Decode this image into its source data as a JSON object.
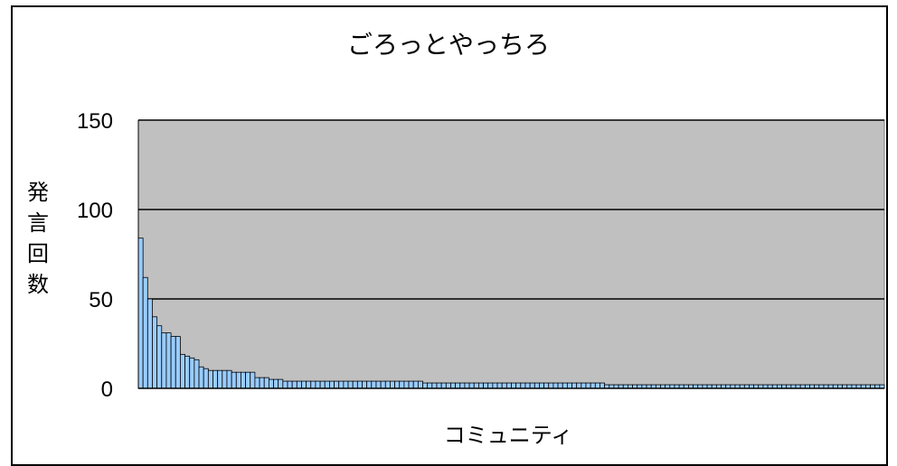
{
  "chart_data": {
    "type": "bar",
    "title": "ごろっとやっちろ",
    "xlabel": "コミュニティ",
    "ylabel": "発言回数",
    "ylim": [
      0,
      150
    ],
    "yticks": [
      0,
      50,
      100,
      150
    ],
    "grid": true,
    "legend": "none",
    "colors": {
      "bar_fill": "#99ccff",
      "bar_stroke": "#000000",
      "plot_bg": "#c0c0c0"
    },
    "values": [
      84,
      62,
      50,
      40,
      35,
      31,
      31,
      29,
      29,
      19,
      18,
      17,
      16,
      12,
      11,
      10,
      10,
      10,
      10,
      10,
      9,
      9,
      9,
      9,
      9,
      6,
      6,
      6,
      5,
      5,
      5,
      4,
      4,
      4,
      4,
      4,
      4,
      4,
      4,
      4,
      4,
      4,
      4,
      4,
      4,
      4,
      4,
      4,
      4,
      4,
      4,
      4,
      4,
      4,
      4,
      4,
      4,
      4,
      4,
      4,
      4,
      3,
      3,
      3,
      3,
      3,
      3,
      3,
      3,
      3,
      3,
      3,
      3,
      3,
      3,
      3,
      3,
      3,
      3,
      3,
      3,
      3,
      3,
      3,
      3,
      3,
      3,
      3,
      3,
      3,
      3,
      3,
      3,
      3,
      3,
      3,
      3,
      3,
      3,
      3,
      2,
      2,
      2,
      2,
      2,
      2,
      2,
      2,
      2,
      2,
      2,
      2,
      2,
      2,
      2,
      2,
      2,
      2,
      2,
      2,
      2,
      2,
      2,
      2,
      2,
      2,
      2,
      2,
      2,
      2,
      2,
      2,
      2,
      2,
      2,
      2,
      2,
      2,
      2,
      2,
      2,
      2,
      2,
      2,
      2,
      2,
      2,
      2,
      2,
      2,
      2,
      2,
      2,
      2,
      2,
      2,
      2,
      2,
      2,
      2
    ]
  }
}
